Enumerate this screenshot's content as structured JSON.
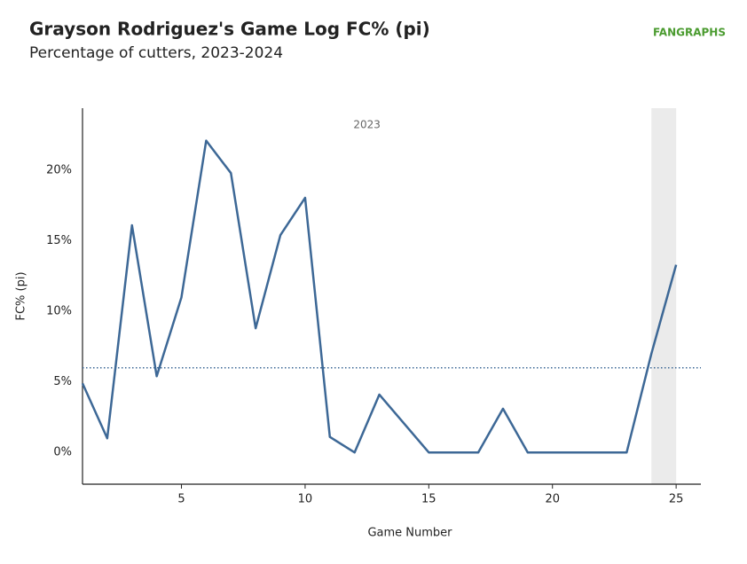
{
  "chart_data": {
    "type": "line",
    "title": "Grayson Rodriguez's Game Log FC% (pi)",
    "subtitle": "Percentage of cutters, 2023-2024",
    "logo": "FANGRAPHS",
    "x_label": "Game Number",
    "y_label": "FC% (pi)",
    "x": [
      1,
      2,
      3,
      4,
      5,
      6,
      7,
      8,
      9,
      10,
      11,
      12,
      13,
      14,
      15,
      16,
      17,
      18,
      19,
      20,
      21,
      22,
      23,
      24,
      25
    ],
    "series": [
      {
        "name": "FC% (pi)",
        "color": "#3d6896",
        "values": [
          4.9,
          1.0,
          16.1,
          5.4,
          11.0,
          22.1,
          19.8,
          8.8,
          15.4,
          18.05,
          1.1,
          0,
          4.1,
          2.05,
          0,
          0,
          0,
          3.1,
          0,
          0,
          0,
          0,
          0,
          7.0,
          13.3
        ]
      }
    ],
    "average": 6.0,
    "season_label": {
      "text": "2023",
      "range": [
        1,
        24
      ]
    },
    "shaded_range": [
      24,
      25
    ],
    "xlim": [
      1,
      26
    ],
    "ylim": [
      -2.25,
      24.4
    ],
    "xticks": [
      5,
      10,
      15,
      20,
      25
    ],
    "yticks": [
      {
        "value": 0,
        "label": "0%"
      },
      {
        "value": 5,
        "label": "5%"
      },
      {
        "value": 10,
        "label": "10%"
      },
      {
        "value": 15,
        "label": "15%"
      },
      {
        "value": 20,
        "label": "20%"
      }
    ]
  }
}
